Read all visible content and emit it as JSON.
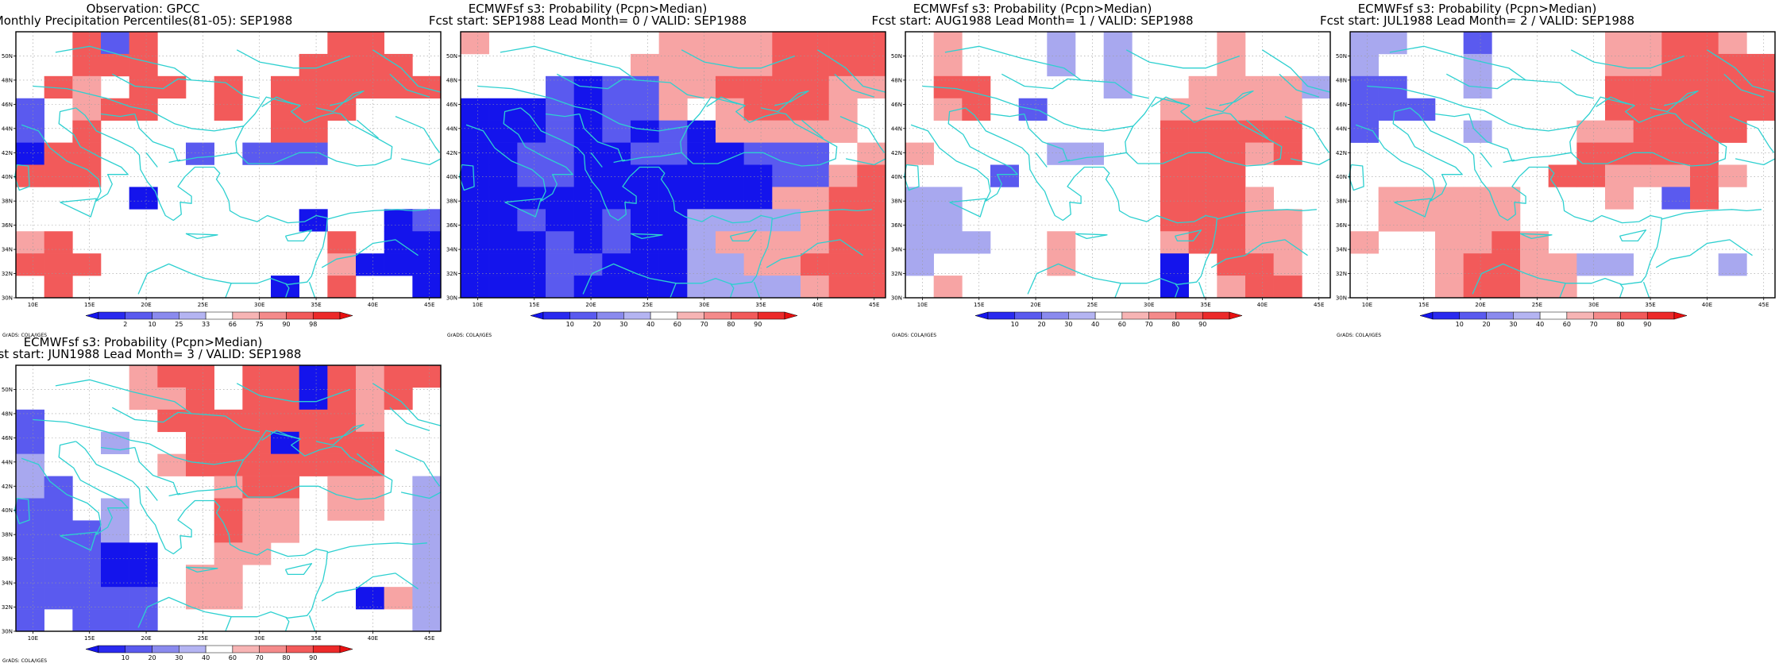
{
  "credit": "GrADS: COLA/IGES",
  "map": {
    "lon_ticks": [
      "10E",
      "15E",
      "20E",
      "25E",
      "30E",
      "35E",
      "40E",
      "45E"
    ],
    "lat_ticks": [
      "50N",
      "48N",
      "46N",
      "44N",
      "42N",
      "40N",
      "38N",
      "36N",
      "34N",
      "32N",
      "30N"
    ],
    "coast_color": "#2ed0d0"
  },
  "panels": [
    {
      "title1": "Observation: GPCC",
      "title2": "Monthly Precipitation Percentiles(81-05): SEP1988",
      "colorbar": {
        "labels": [
          "2",
          "10",
          "25",
          "33",
          "66",
          "75",
          "90",
          "98"
        ]
      },
      "grid": [
        "WWRBRWWWWWWRRWW",
        "WWRRRWWWWWRRRRW",
        "WRPWRRWRWRRRRRR",
        "BWPRRWWRWRRRWWW",
        "BWRWWWWWWRRWWWW",
        "DRRWWWBWBBBWWWW",
        "RRRWWWWWWWWWWWW",
        "WWWWDWWWWWWWWWW",
        "WWWWWWWWWWDWWDB",
        "PRWWWWWWWWWRWDD",
        "RRRWWWWWWWWPDDD",
        "WRWWWWWWWDWRWWD"
      ]
    },
    {
      "title1": "ECMWFsf s3: Probability (Pcpn>Median)",
      "title2": "Fcst start: SEP1988  Lead Month= 0 / VALID: SEP1988",
      "colorbar": {
        "labels": [
          "10",
          "20",
          "30",
          "40",
          "60",
          "70",
          "80",
          "90"
        ]
      },
      "grid": [
        "PWWWWWWPPPPRRRR",
        "WWWWWWPPPPPRRRR",
        "WWWBDBBPPRRRRPP",
        "DDDBDBBPWPRRRPW",
        "DDDBDBDBDPPPPPW",
        "DDBBDDBBDDBBBWP",
        "DDBBDDDDDDDBBPR",
        "DDDDDDDDDDDPPRR",
        "DDBDDBDDLLLLPRR",
        "DDDBDBDDLPPPPRR",
        "DDDBBDDDLLPPRRR",
        "DDDBDDDDLLLLPRR"
      ]
    },
    {
      "title1": "ECMWFsf s3: Probability (Pcpn>Median)",
      "title2": "Fcst start: AUG1988  Lead Month= 1 / VALID: SEP1988",
      "colorbar": {
        "labels": [
          "10",
          "20",
          "30",
          "40",
          "60",
          "70",
          "80",
          "90"
        ]
      },
      "grid": [
        "WPWWWLWLWWWPWWW",
        "WPWWWLWLWWWPWWW",
        "WRRWWWWLWWPPPPL",
        "WPRWBWWWWPPPPPW",
        "WWWWWWWWWRRRRRW",
        "PWWWWLLWWRRRPRW",
        "WWWBWWWWWRRRWWW",
        "LLWWWWWWWRRRPWW",
        "LLWWWWWWWRRRPPW",
        "LLLWWPWWWPRRPPW",
        "LWWWWPWWWDWRRPW",
        "WPWWWWWWWDWPRRW"
      ]
    },
    {
      "title1": "ECMWFsf s3: Probability (Pcpn>Median)",
      "title2": "Fcst start: JUL1988  Lead Month= 2 / VALID: SEP1988",
      "colorbar": {
        "labels": [
          "10",
          "20",
          "30",
          "40",
          "60",
          "70",
          "80",
          "90"
        ]
      },
      "grid": [
        "LLWWBWWWWPPRRPW",
        "LWWWLWWWWPPRRRR",
        "BBWWLWWWWRRRRRR",
        "BBBWWWWWWRRRRRR",
        "BWWWLWWWPPRRRRW",
        "WWWWWWWWRRRRRWW",
        "WWWWWWWRRPPPRPW",
        "WPPPPPWWWPWBRWW",
        "WPPPPPWWWWWWWWW",
        "PWWPPRPWWWWWWWW",
        "WWWPRRPPLLWWWLW",
        "WWWPRRPPWWWWWWW"
      ]
    },
    {
      "title1": "ECMWFsf s3: Probability (Pcpn>Median)",
      "title2": "Fcst start: JUN1988  Lead Month= 3 / VALID: SEP1988",
      "colorbar": {
        "labels": [
          "10",
          "20",
          "30",
          "40",
          "60",
          "70",
          "80",
          "90"
        ]
      },
      "grid": [
        "WWWWPRRWRRDRPRR",
        "WWWWPPRWRRDRPRW",
        "BWWWWRRRRRRRPWW",
        "BWWLWWRRRDRRRWW",
        "LWWWWPRRRRRRRWW",
        "LBWWWWWPRRWPPWL",
        "BBWLWWWRPPWPPWL",
        "BBBLWWWRPPWWWWL",
        "BBBDDWWPPWWWWWL",
        "BBBDDWPPWWWWWWL",
        "BBBBBWPPWWWWDPL",
        "BWBBBWWWWWWWWWL"
      ]
    }
  ]
}
